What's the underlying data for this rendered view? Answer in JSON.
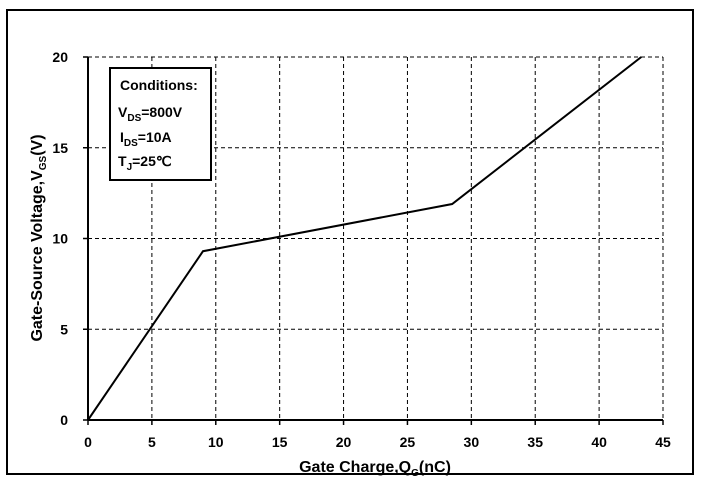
{
  "chart_data": {
    "type": "line",
    "title": "",
    "xlabel": {
      "main": "Gate Charge,Q",
      "sub": "G",
      "unit": "(nC)"
    },
    "ylabel": {
      "main": "Gate-Source Voltage,V",
      "sub": "GS",
      "unit": "(V)"
    },
    "xlim": [
      0,
      45
    ],
    "ylim": [
      0,
      20
    ],
    "xticks": [
      0,
      5,
      10,
      15,
      20,
      25,
      30,
      35,
      40,
      45
    ],
    "yticks": [
      0,
      5,
      10,
      15,
      20
    ],
    "grid": "dashed",
    "series": [
      {
        "points": [
          [
            0,
            0
          ],
          [
            9,
            9.3
          ],
          [
            28.5,
            11.9
          ],
          [
            43.3,
            20
          ]
        ]
      }
    ],
    "annotation": {
      "heading": "Conditions:",
      "lines": [
        {
          "main": "V",
          "sub": "DS",
          "rest": "=800V"
        },
        {
          "main": "I",
          "sub": "DS",
          "rest": "=10A"
        },
        {
          "main": "T",
          "sub": "J",
          "rest": "=25℃"
        }
      ]
    },
    "colors": {
      "line": "#000000",
      "grid": "#000000",
      "background": "#ffffff"
    }
  }
}
